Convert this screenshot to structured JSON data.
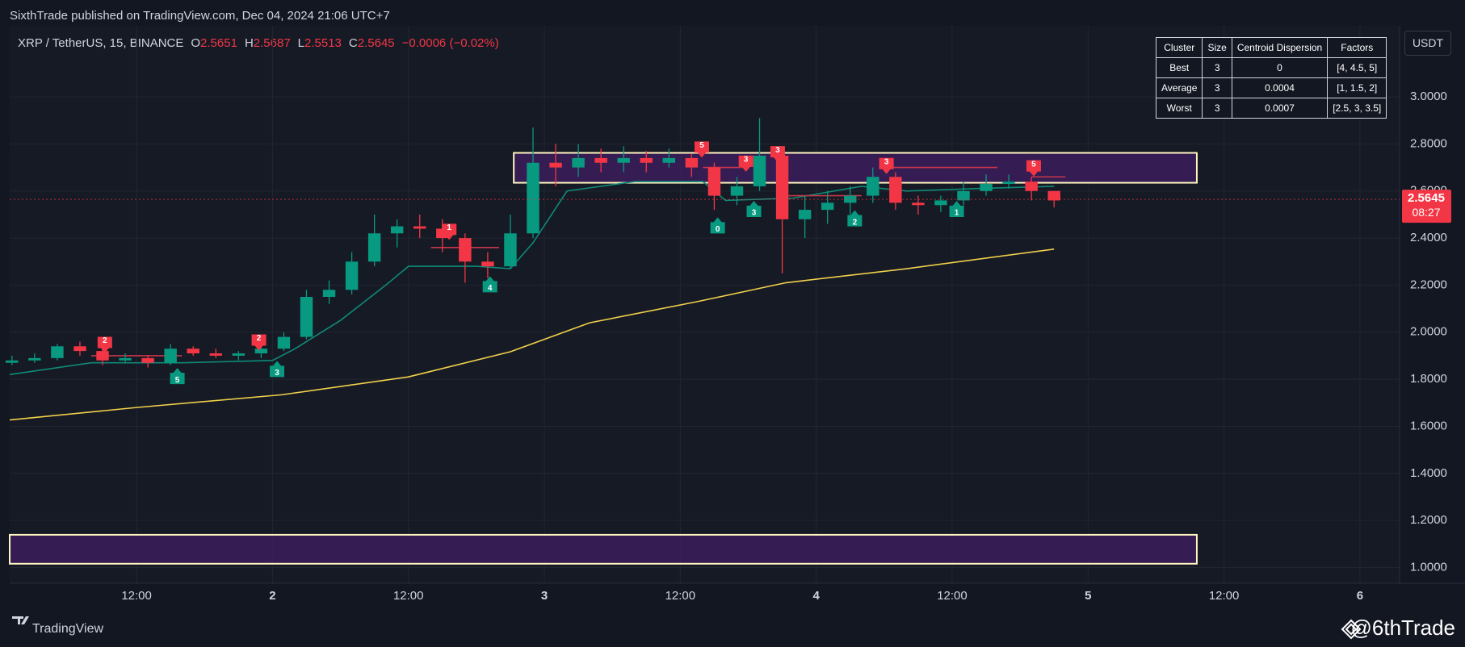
{
  "chart_data": {
    "type": "candlestick",
    "title": "SixthTrade published on TradingView.com, Dec 04, 2024 21:06 UTC+7",
    "symbol": "XRP / TetherUS, 15, BINANCE",
    "ohlc_legend": [
      {
        "key": "O",
        "value": "2.5651"
      },
      {
        "key": "H",
        "value": "2.5687"
      },
      {
        "key": "L",
        "value": "2.5513"
      },
      {
        "key": "C",
        "value": "2.5645"
      }
    ],
    "change": "−0.0006 (−0.02%)",
    "unit": "USDT",
    "brand": "TradingView",
    "watermark": "@6thTrade",
    "up_color": "#089981",
    "down_color": "#f23645",
    "grid": true,
    "xlim": [
      0.8,
      123.5
    ],
    "xticks": [
      {
        "value": 12,
        "label": "12:00"
      },
      {
        "value": 24,
        "label": "2"
      },
      {
        "value": 36,
        "label": "12:00"
      },
      {
        "value": 48,
        "label": "3"
      },
      {
        "value": 60,
        "label": "12:00"
      },
      {
        "value": 72,
        "label": "4"
      },
      {
        "value": 84,
        "label": "12:00"
      },
      {
        "value": 96,
        "label": "5"
      },
      {
        "value": 108,
        "label": "12:00"
      },
      {
        "value": 120,
        "label": "6"
      }
    ],
    "ylim": [
      0.933,
      3.302
    ],
    "yticks": [
      {
        "value": 1,
        "label": "1.0000"
      },
      {
        "value": 1.2,
        "label": "1.2000"
      },
      {
        "value": 1.4,
        "label": "1.4000"
      },
      {
        "value": 1.6,
        "label": "1.6000"
      },
      {
        "value": 1.8,
        "label": "1.8000"
      },
      {
        "value": 2,
        "label": "2.0000"
      },
      {
        "value": 2.2,
        "label": "2.2000"
      },
      {
        "value": 2.4,
        "label": "2.4000"
      },
      {
        "value": 2.6,
        "label": "2.6000"
      },
      {
        "value": 2.8,
        "label": "2.8000"
      },
      {
        "value": 3,
        "label": "3.0000"
      }
    ],
    "x": [
      1,
      3,
      5,
      7,
      9,
      11,
      13,
      15,
      17,
      19,
      21,
      23,
      25,
      27,
      29,
      31,
      33,
      35,
      37,
      39,
      41,
      43,
      45,
      47,
      49,
      51,
      53,
      55,
      57,
      59,
      61,
      63,
      65,
      67,
      69,
      71,
      73,
      75,
      77,
      79,
      81,
      83,
      85,
      87,
      89,
      91,
      93
    ],
    "open": [
      1.87,
      1.88,
      1.89,
      1.94,
      1.92,
      1.88,
      1.89,
      1.87,
      1.93,
      1.91,
      1.9,
      1.91,
      1.93,
      1.98,
      2.15,
      2.18,
      2.3,
      2.42,
      2.45,
      2.44,
      2.4,
      2.3,
      2.28,
      2.42,
      2.72,
      2.7,
      2.74,
      2.72,
      2.74,
      2.72,
      2.74,
      2.7,
      2.58,
      2.62,
      2.75,
      2.48,
      2.52,
      2.55,
      2.58,
      2.66,
      2.55,
      2.54,
      2.56,
      2.6,
      2.63,
      2.64,
      2.6
    ],
    "high": [
      1.9,
      1.91,
      1.95,
      1.96,
      1.93,
      1.91,
      1.9,
      1.95,
      1.94,
      1.93,
      1.92,
      1.94,
      2.0,
      2.18,
      2.22,
      2.34,
      2.5,
      2.48,
      2.5,
      2.48,
      2.42,
      2.34,
      2.5,
      2.87,
      2.8,
      2.8,
      2.78,
      2.79,
      2.77,
      2.78,
      2.76,
      2.72,
      2.66,
      2.91,
      2.78,
      2.58,
      2.6,
      2.62,
      2.7,
      2.68,
      2.58,
      2.58,
      2.64,
      2.67,
      2.67,
      2.66,
      2.6
    ],
    "low": [
      1.86,
      1.87,
      1.88,
      1.9,
      1.86,
      1.87,
      1.85,
      1.86,
      1.9,
      1.89,
      1.88,
      1.89,
      1.92,
      1.97,
      2.12,
      2.16,
      2.28,
      2.36,
      2.4,
      2.34,
      2.21,
      2.23,
      2.27,
      2.4,
      2.62,
      2.66,
      2.68,
      2.68,
      2.68,
      2.7,
      2.66,
      2.52,
      2.54,
      2.6,
      2.25,
      2.4,
      2.46,
      2.5,
      2.55,
      2.52,
      2.5,
      2.51,
      2.54,
      2.58,
      2.61,
      2.56,
      2.53
    ],
    "close": [
      1.88,
      1.89,
      1.94,
      1.92,
      1.88,
      1.89,
      1.87,
      1.93,
      1.91,
      1.9,
      1.91,
      1.93,
      1.98,
      2.15,
      2.18,
      2.3,
      2.42,
      2.45,
      2.44,
      2.4,
      2.3,
      2.28,
      2.42,
      2.72,
      2.7,
      2.74,
      2.72,
      2.74,
      2.72,
      2.74,
      2.7,
      2.58,
      2.62,
      2.75,
      2.48,
      2.52,
      2.55,
      2.58,
      2.66,
      2.55,
      2.54,
      2.56,
      2.6,
      2.63,
      2.64,
      2.6,
      2.56
    ],
    "last_price": 2.5645,
    "countdown": "08:27",
    "last_color": "#f23645",
    "overlays": [
      {
        "color": "#f0d04a",
        "x": [
          0.8,
          12,
          24.8,
          36,
          45,
          52,
          61.5,
          69.3,
          80,
          93
        ],
        "values": [
          1.627,
          1.68,
          1.734,
          1.81,
          1.917,
          2.04,
          2.13,
          2.21,
          2.27,
          2.353
        ]
      },
      {
        "color": "#0e8a78",
        "x": [
          0.8,
          8,
          16,
          24,
          26,
          30,
          34,
          36,
          42,
          45,
          47,
          50,
          56,
          62,
          64,
          70,
          76,
          80,
          86,
          93
        ],
        "values": [
          1.82,
          1.87,
          1.87,
          1.88,
          1.93,
          2.05,
          2.2,
          2.28,
          2.28,
          2.27,
          2.38,
          2.6,
          2.64,
          2.64,
          2.56,
          2.57,
          2.62,
          2.6,
          2.61,
          2.62
        ]
      },
      {
        "color": "#c8354a",
        "x": [
          8,
          16
        ],
        "values": [
          1.9,
          1.9
        ]
      },
      {
        "color": "#c8354a",
        "x": [
          38,
          44
        ],
        "values": [
          2.36,
          2.36
        ]
      },
      {
        "color": "#c8354a",
        "x": [
          62,
          66
        ],
        "values": [
          2.7,
          2.7
        ]
      },
      {
        "color": "#c8354a",
        "x": [
          69,
          76
        ],
        "values": [
          2.58,
          2.58
        ]
      },
      {
        "color": "#c8354a",
        "x": [
          78,
          88
        ],
        "values": [
          2.7,
          2.7
        ]
      },
      {
        "color": "#c8354a",
        "x": [
          91,
          94
        ],
        "values": [
          2.66,
          2.66
        ]
      }
    ],
    "zones": [
      {
        "x": [
          45.3,
          105.6
        ],
        "y": [
          2.635,
          2.762
        ],
        "color": "#3b1f5c"
      },
      {
        "x": [
          0.8,
          105.6
        ],
        "y": [
          1.016,
          1.139
        ],
        "color": "#3b1f5c"
      }
    ],
    "signals": [
      {
        "x": 9.2,
        "y": 1.96,
        "label": "2",
        "color": "#f23645"
      },
      {
        "x": 22.8,
        "y": 1.97,
        "label": "2",
        "color": "#f23645"
      },
      {
        "x": 39.6,
        "y": 2.44,
        "label": "1",
        "color": "#f23645"
      },
      {
        "x": 61.9,
        "y": 2.79,
        "label": "5",
        "color": "#f23645"
      },
      {
        "x": 65.8,
        "y": 2.73,
        "label": "3",
        "color": "#f23645"
      },
      {
        "x": 68.6,
        "y": 2.77,
        "label": "3",
        "color": "#f23645"
      },
      {
        "x": 78.2,
        "y": 2.72,
        "label": "3",
        "color": "#f23645"
      },
      {
        "x": 91.2,
        "y": 2.71,
        "label": "5",
        "color": "#f23645"
      },
      {
        "x": 15.6,
        "y": 1.8,
        "label": "5",
        "color": "#089981"
      },
      {
        "x": 24.4,
        "y": 1.83,
        "label": "3",
        "color": "#089981"
      },
      {
        "x": 43.2,
        "y": 2.19,
        "label": "4",
        "color": "#089981"
      },
      {
        "x": 63.3,
        "y": 2.44,
        "label": "0",
        "color": "#089981"
      },
      {
        "x": 66.5,
        "y": 2.51,
        "label": "3",
        "color": "#089981"
      },
      {
        "x": 75.4,
        "y": 2.47,
        "label": "2",
        "color": "#089981"
      },
      {
        "x": 84.4,
        "y": 2.51,
        "label": "1",
        "color": "#089981"
      }
    ],
    "table": {
      "header": [
        "Cluster",
        "Size",
        "Centroid Dispersion",
        "Factors"
      ],
      "rows": [
        [
          "Best",
          3,
          0,
          "[4, 4.5, 5]"
        ],
        [
          "Average",
          3,
          0.0004,
          "[1, 1.5, 2]"
        ],
        [
          "Worst",
          3,
          0.0007,
          "[2.5, 3, 3.5]"
        ]
      ]
    }
  }
}
